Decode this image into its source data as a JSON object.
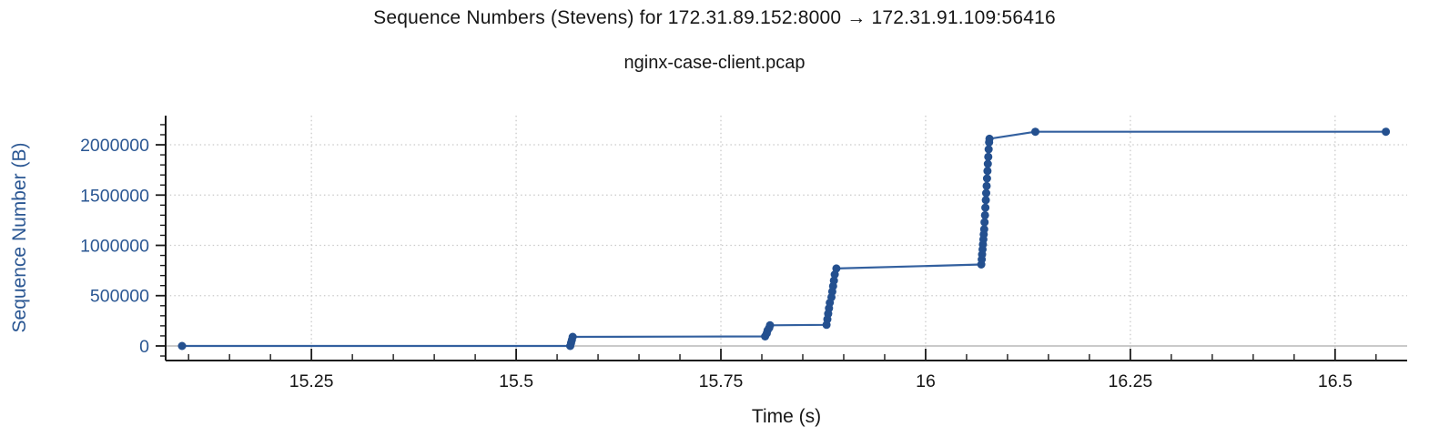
{
  "chart_data": {
    "type": "scatter",
    "mode": "lines+markers",
    "title": "Sequence Numbers (Stevens) for 172.31.89.152:8000 → 172.31.91.109:56416",
    "subtitle": "nginx-case-client.pcap",
    "xlabel": "Time (s)",
    "ylabel": "Sequence Number (B)",
    "xlim": [
      15.072,
      16.588
    ],
    "ylim": [
      -145000,
      2290000
    ],
    "x_ticks": [
      15.25,
      15.5,
      15.75,
      16,
      16.25,
      16.5
    ],
    "x_tick_labels": [
      "15.25",
      "15.5",
      "15.75",
      "16",
      "16.25",
      "16.5"
    ],
    "x_minor_step": 0.05,
    "y_ticks": [
      0,
      500000,
      1000000,
      1500000,
      2000000
    ],
    "y_tick_labels": [
      "0",
      "500000",
      "1000000",
      "1500000",
      "2000000"
    ],
    "y_minor_step": 100000,
    "grid": "dotted-major",
    "zero_line": true,
    "legend": "none",
    "colors": {
      "line": "#33609f",
      "marker": "#24508f",
      "y_axis_text": "#2b5793",
      "x_axis_text": "#161616",
      "grid": "#c9c9c9",
      "zero_line": "#c2c2c2",
      "spine": "#1a1a1a"
    },
    "series": [
      {
        "name": "tcp-sequence-numbers",
        "points": [
          [
            15.092,
            0
          ],
          [
            15.566,
            0
          ],
          [
            15.567,
            30000
          ],
          [
            15.568,
            60000
          ],
          [
            15.569,
            90000
          ],
          [
            15.804,
            95000
          ],
          [
            15.806,
            125000
          ],
          [
            15.807,
            155000
          ],
          [
            15.809,
            180000
          ],
          [
            15.81,
            205000
          ],
          [
            15.879,
            210000
          ],
          [
            15.88,
            265000
          ],
          [
            15.881,
            320000
          ],
          [
            15.882,
            375000
          ],
          [
            15.883,
            430000
          ],
          [
            15.885,
            485000
          ],
          [
            15.886,
            540000
          ],
          [
            15.887,
            595000
          ],
          [
            15.888,
            650000
          ],
          [
            15.889,
            710000
          ],
          [
            15.891,
            770000
          ],
          [
            16.068,
            810000
          ],
          [
            16.0685,
            860000
          ],
          [
            16.069,
            910000
          ],
          [
            16.0695,
            960000
          ],
          [
            16.07,
            1010000
          ],
          [
            16.0705,
            1060000
          ],
          [
            16.071,
            1110000
          ],
          [
            16.0715,
            1160000
          ],
          [
            16.072,
            1230000
          ],
          [
            16.0725,
            1300000
          ],
          [
            16.073,
            1375000
          ],
          [
            16.0735,
            1450000
          ],
          [
            16.074,
            1520000
          ],
          [
            16.0745,
            1590000
          ],
          [
            16.075,
            1665000
          ],
          [
            16.0755,
            1740000
          ],
          [
            16.076,
            1810000
          ],
          [
            16.0765,
            1880000
          ],
          [
            16.077,
            1955000
          ],
          [
            16.0775,
            2025000
          ],
          [
            16.078,
            2060000
          ],
          [
            16.134,
            2130000
          ],
          [
            16.562,
            2130000
          ]
        ]
      }
    ]
  }
}
